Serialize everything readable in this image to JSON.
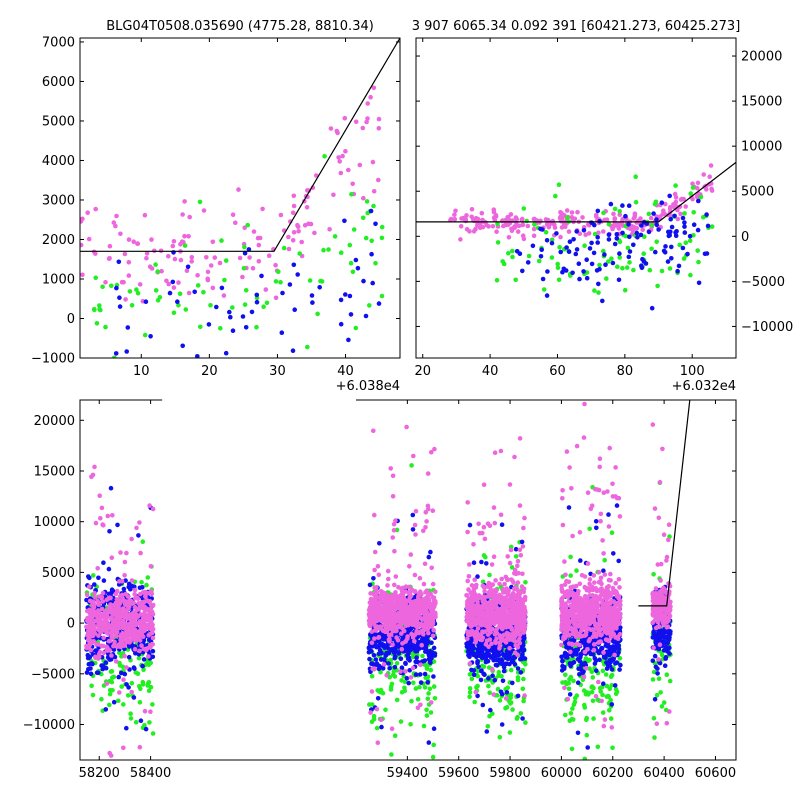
{
  "window": {
    "title_left": "BLG04T0508.035690 (4775.28, 8810.34)",
    "title_right": "3 907 6065.34 0.092 391 [60421.273, 60425.273]"
  },
  "colors": {
    "pink": "#ee66dd",
    "blue": "#1010ee",
    "green": "#22ee22",
    "model": "#000000"
  },
  "chart_data": [
    {
      "name": "zoom-left",
      "type": "scatter",
      "title": "BLG04T0508.035690 (4775.28, 8810.34)",
      "x_offset_label": "+6.038e4",
      "xlim": [
        1,
        48
      ],
      "ylim": [
        -1000,
        7100
      ],
      "x_ticks": [
        10,
        20,
        30,
        40
      ],
      "y_ticks": [
        -1000,
        0,
        1000,
        2000,
        3000,
        4000,
        5000,
        6000,
        7000
      ],
      "y_axis_side": "left",
      "model_line": [
        [
          1,
          1700
        ],
        [
          29.5,
          1700
        ],
        [
          48,
          7100
        ]
      ],
      "series": [
        {
          "color": "pink",
          "count": 150,
          "x_range": [
            1,
            46
          ],
          "baseline": 1700,
          "scatter": 600,
          "rise_start": 30,
          "slope": 230
        },
        {
          "color": "green",
          "count": 80,
          "x_range": [
            1,
            46
          ],
          "baseline": 500,
          "scatter": 900,
          "rise_start": 30,
          "slope": 120
        },
        {
          "color": "blue",
          "count": 60,
          "x_range": [
            5,
            46
          ],
          "baseline": 200,
          "scatter": 1000,
          "rise_start": 30,
          "slope": 100
        }
      ]
    },
    {
      "name": "zoom-right",
      "type": "scatter",
      "title": "3 907 6065.34 0.092 391 [60421.273, 60425.273]",
      "x_offset_label": "+6.032e4",
      "xlim": [
        18,
        113
      ],
      "ylim": [
        -13500,
        22000
      ],
      "x_ticks": [
        20,
        40,
        60,
        80,
        100
      ],
      "y_ticks": [
        -10000,
        -5000,
        0,
        5000,
        10000,
        15000,
        20000
      ],
      "y_axis_side": "right",
      "model_line": [
        [
          18,
          1600
        ],
        [
          90,
          1600
        ],
        [
          113,
          8200
        ]
      ],
      "series": [
        {
          "color": "pink",
          "count": 260,
          "x_range": [
            28,
            106
          ],
          "baseline": 1500,
          "scatter": 700,
          "rise_start": 88,
          "slope": 230
        },
        {
          "color": "green",
          "count": 100,
          "x_range": [
            42,
            106
          ],
          "baseline": -1500,
          "scatter": 3000,
          "rise_start": 88,
          "slope": 150
        },
        {
          "color": "blue",
          "count": 120,
          "x_range": [
            48,
            106
          ],
          "baseline": -1200,
          "scatter": 2500,
          "rise_start": 88,
          "slope": 150
        }
      ]
    },
    {
      "name": "full-lightcurve",
      "type": "scatter",
      "xlim": [
        58125,
        60680
      ],
      "ylim": [
        -13500,
        22000
      ],
      "x_ticks": [
        58200,
        58400,
        59400,
        59600,
        59800,
        60000,
        60200,
        60400,
        60600
      ],
      "y_ticks": [
        -10000,
        -5000,
        0,
        5000,
        10000,
        15000,
        20000
      ],
      "y_axis_side": "left",
      "broken_axis_gap": [
        58445,
        59200
      ],
      "model_line": [
        [
          60300,
          1700
        ],
        [
          60410,
          1700
        ],
        [
          60500,
          22000
        ]
      ],
      "seasons": [
        {
          "x_range": [
            58150,
            58410
          ],
          "pink": [
            0,
            1500
          ],
          "blue": [
            0,
            2200
          ],
          "green": [
            -2500,
            3500
          ],
          "density": 420
        },
        {
          "x_range": [
            59250,
            59510
          ],
          "pink": [
            1000,
            1200
          ],
          "blue": [
            -1300,
            1700
          ],
          "green": [
            -3500,
            3500
          ],
          "density": 520
        },
        {
          "x_range": [
            59630,
            59860
          ],
          "pink": [
            1200,
            1500
          ],
          "blue": [
            -1300,
            1700
          ],
          "green": [
            -3000,
            3500
          ],
          "density": 520
        },
        {
          "x_range": [
            60000,
            60230
          ],
          "pink": [
            1000,
            1500
          ],
          "blue": [
            -1000,
            1700
          ],
          "green": [
            -3500,
            3500
          ],
          "density": 520
        },
        {
          "x_range": [
            60355,
            60425
          ],
          "pink": [
            1700,
            1000
          ],
          "blue": [
            -500,
            1700
          ],
          "green": [
            -2000,
            3500
          ],
          "density": 160
        }
      ]
    }
  ]
}
